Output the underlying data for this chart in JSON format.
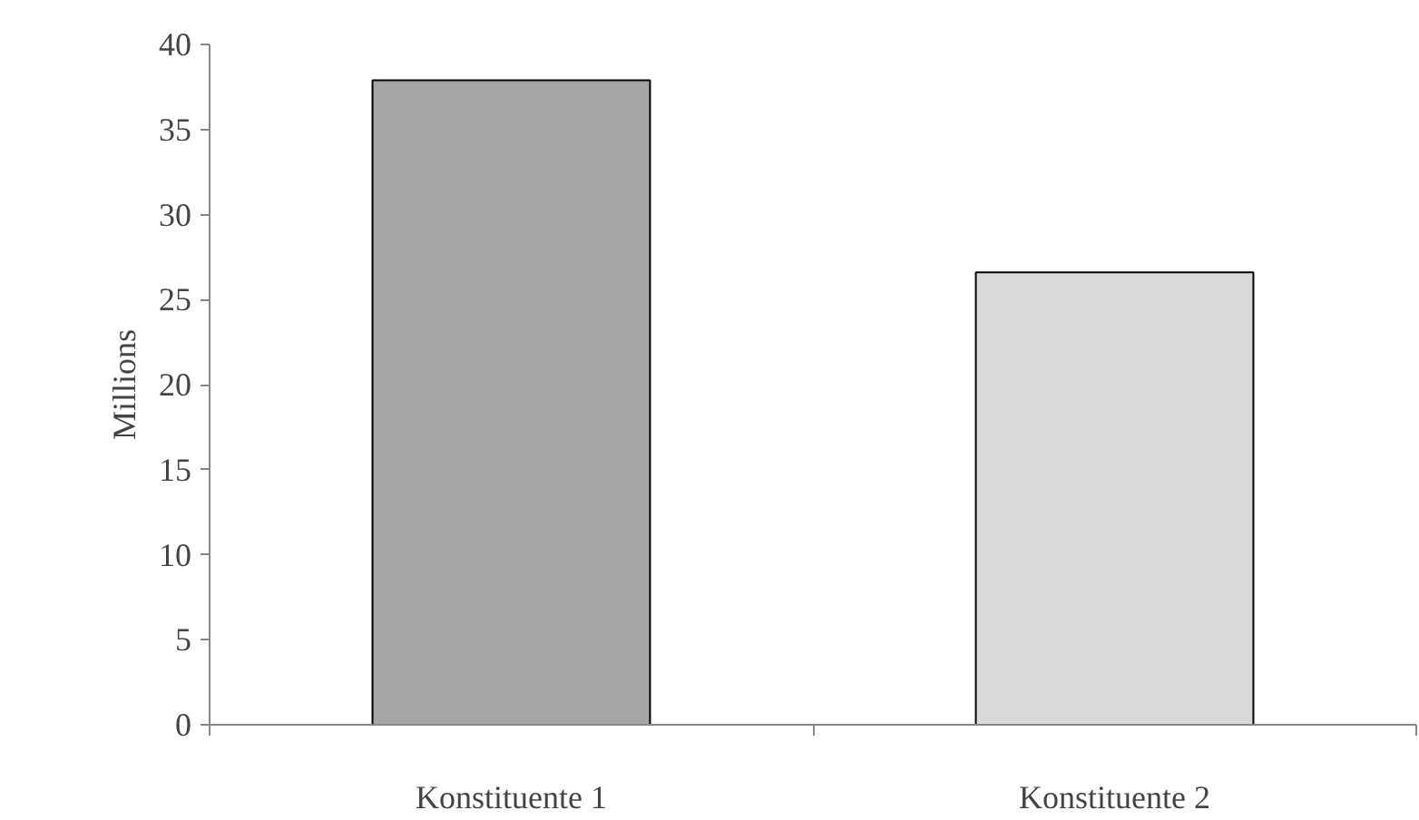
{
  "chart_data": {
    "type": "bar",
    "ylabel": "Millions",
    "categories": [
      "Konstituente 1",
      "Konstituente 2"
    ],
    "values": [
      37.9,
      26.6
    ],
    "colors": [
      "#a6a6a6",
      "#d9d9d9"
    ],
    "ylim": [
      0,
      40
    ],
    "yticks": [
      0,
      5,
      10,
      15,
      20,
      25,
      30,
      35,
      40
    ],
    "grid": false
  }
}
